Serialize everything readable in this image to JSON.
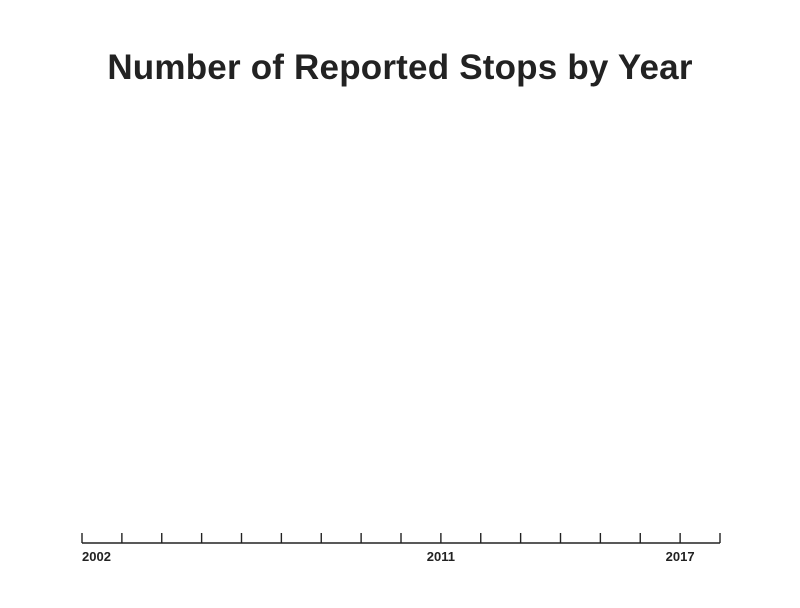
{
  "chart_data": {
    "type": "bar",
    "title": "Number of Reported Stops by Year",
    "xlabel": "",
    "ylabel": "",
    "x_range": [
      2002,
      2018
    ],
    "x_ticks": [
      2002,
      2003,
      2004,
      2005,
      2006,
      2007,
      2008,
      2009,
      2010,
      2011,
      2012,
      2013,
      2014,
      2015,
      2016,
      2017,
      2018
    ],
    "x_tick_labels": [
      {
        "year": 2002,
        "label": "2002"
      },
      {
        "year": 2011,
        "label": "2011"
      },
      {
        "year": 2017,
        "label": "2017"
      }
    ],
    "series": [],
    "grid": false,
    "colors": {
      "axis": "#222222",
      "text": "#222222",
      "background": "#ffffff"
    }
  }
}
